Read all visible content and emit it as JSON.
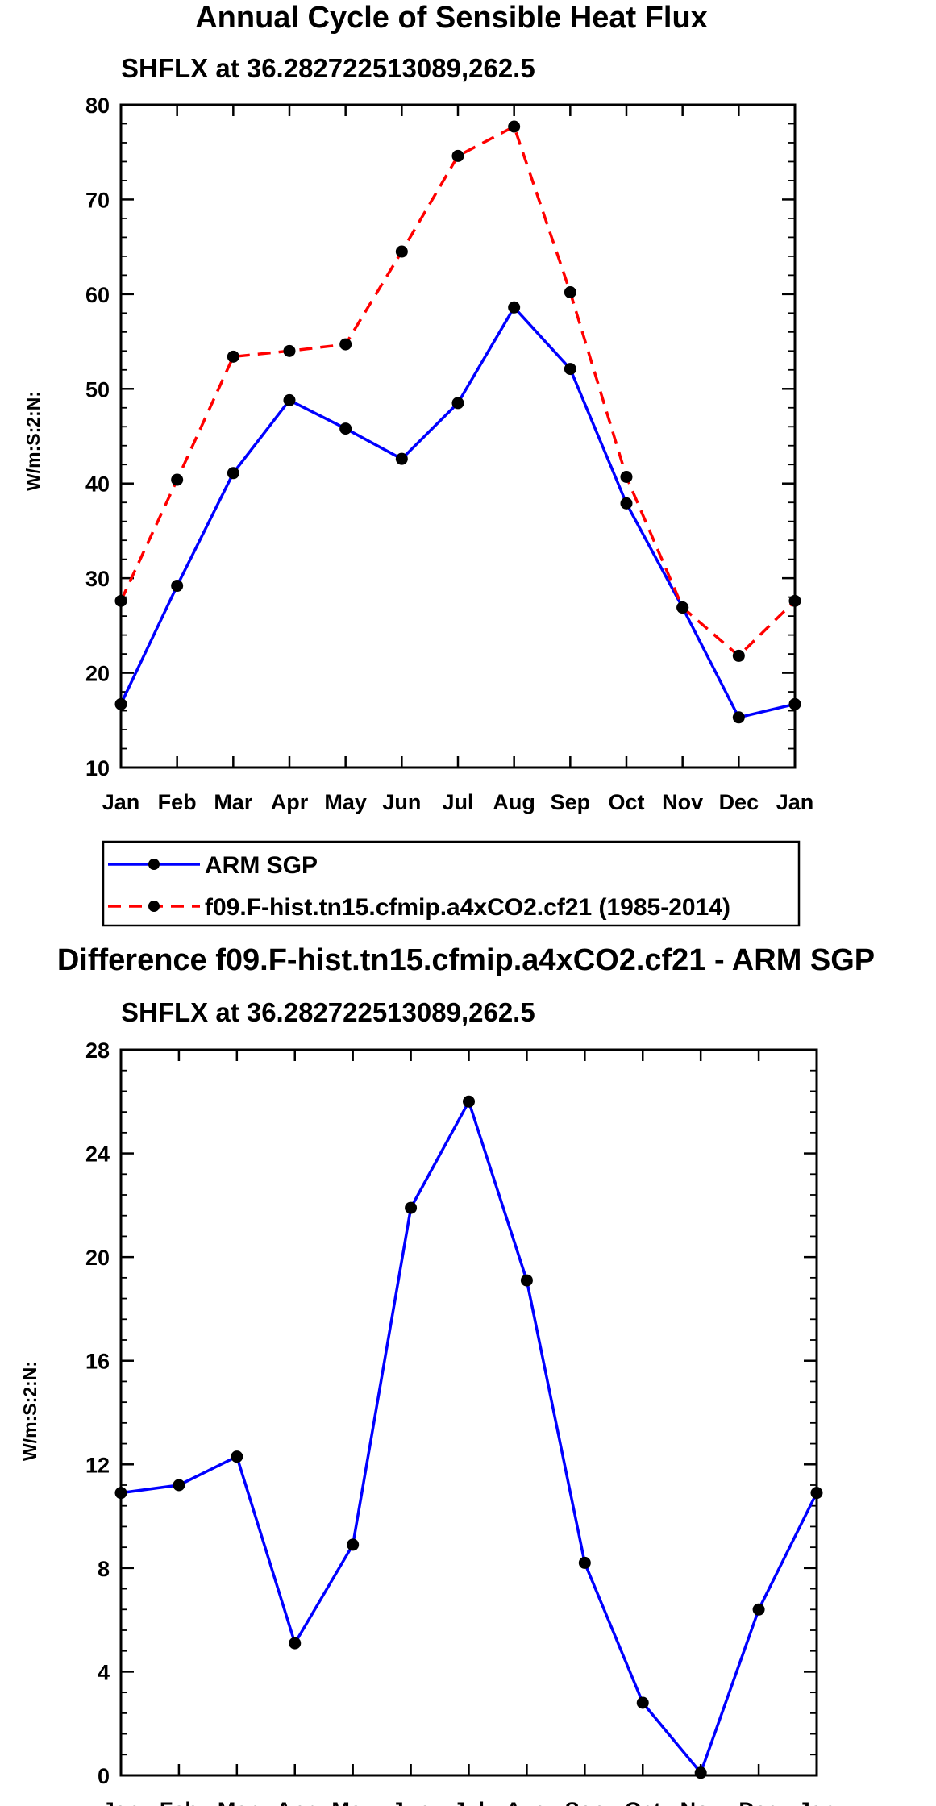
{
  "chart_data": [
    {
      "type": "line",
      "title": "Annual Cycle of Sensible Heat Flux",
      "subtitle": "SHFLX at 36.282722513089,262.5",
      "ylabel": "W/m:S:2:N:",
      "xlabel": "",
      "categories": [
        "Jan",
        "Feb",
        "Mar",
        "Apr",
        "May",
        "Jun",
        "Jul",
        "Aug",
        "Sep",
        "Oct",
        "Nov",
        "Dec",
        "Jan"
      ],
      "ylim": [
        10,
        80
      ],
      "yticks": [
        10,
        20,
        30,
        40,
        50,
        60,
        70,
        80
      ],
      "series": [
        {
          "name": "ARM SGP",
          "color": "#0000ff",
          "dash": "solid",
          "values": [
            16.7,
            29.2,
            41.1,
            48.8,
            45.8,
            42.6,
            48.5,
            58.6,
            52.1,
            37.9,
            26.9,
            15.3,
            16.7
          ]
        },
        {
          "name": "f09.F-hist.tn15.cfmip.a4xCO2.cf21 (1985-2014)",
          "color": "#ff0000",
          "dash": "dashed",
          "values": [
            27.6,
            40.4,
            53.4,
            54.0,
            54.7,
            64.5,
            74.6,
            77.7,
            60.2,
            40.7,
            26.9,
            21.8,
            27.6
          ]
        }
      ],
      "legend": {
        "location": "below-chart",
        "entries": [
          "ARM SGP",
          "f09.F-hist.tn15.cfmip.a4xCO2.cf21 (1985-2014)"
        ]
      }
    },
    {
      "type": "line",
      "title": "Difference f09.F-hist.tn15.cfmip.a4xCO2.cf21 - ARM SGP",
      "subtitle": "SHFLX at 36.282722513089,262.5",
      "ylabel": "W/m:S:2:N:",
      "xlabel": "",
      "categories": [
        "Jan",
        "Feb",
        "Mar",
        "Apr",
        "May",
        "Jun",
        "Jul",
        "Aug",
        "Sep",
        "Oct",
        "Nov",
        "Dec",
        "Jan"
      ],
      "ylim": [
        0,
        28
      ],
      "yticks": [
        0,
        4,
        8,
        12,
        16,
        20,
        24,
        28
      ],
      "series": [
        {
          "name": "Difference",
          "color": "#0000ff",
          "dash": "solid",
          "values": [
            10.9,
            11.2,
            12.3,
            5.1,
            8.9,
            21.9,
            26.0,
            19.1,
            8.2,
            2.8,
            0.1,
            6.4,
            10.9
          ]
        }
      ]
    }
  ]
}
